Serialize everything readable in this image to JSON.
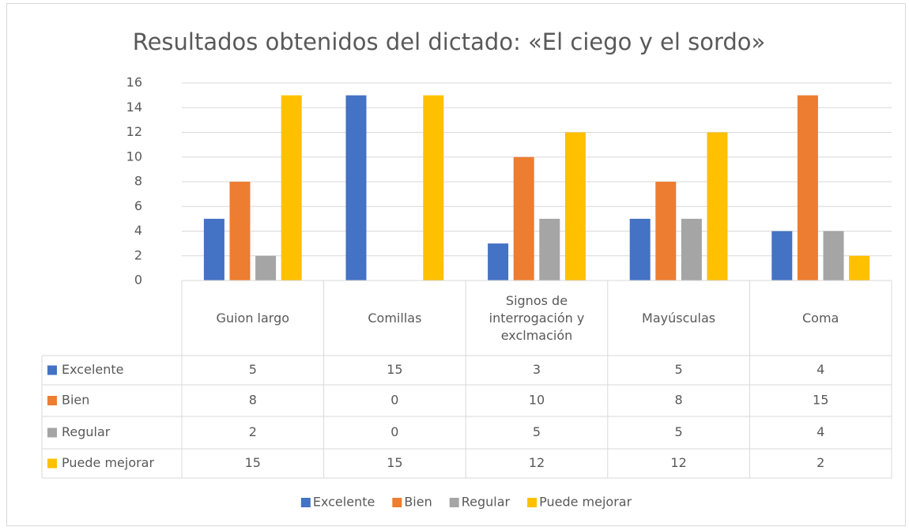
{
  "chart_data": {
    "type": "bar",
    "title": "Resultados obtenidos del dictado: «El ciego y el sordo»",
    "categories": [
      "Guion largo",
      "Comillas",
      "Signos de interrogación y exclmación",
      "Mayúsculas",
      "Coma"
    ],
    "series": [
      {
        "name": "Excelente",
        "color": "#4472c4",
        "values": [
          5,
          15,
          3,
          5,
          4
        ]
      },
      {
        "name": "Bien",
        "color": "#ed7d31",
        "values": [
          8,
          0,
          10,
          8,
          15
        ]
      },
      {
        "name": "Regular",
        "color": "#a5a5a5",
        "values": [
          2,
          0,
          5,
          5,
          4
        ]
      },
      {
        "name": "Puede mejorar",
        "color": "#ffc000",
        "values": [
          15,
          15,
          12,
          12,
          2
        ]
      }
    ],
    "ylim": [
      0,
      16
    ],
    "yticks": [
      0,
      2,
      4,
      6,
      8,
      10,
      12,
      14,
      16
    ],
    "grid": true,
    "legend": "bottom",
    "data_table": true
  }
}
